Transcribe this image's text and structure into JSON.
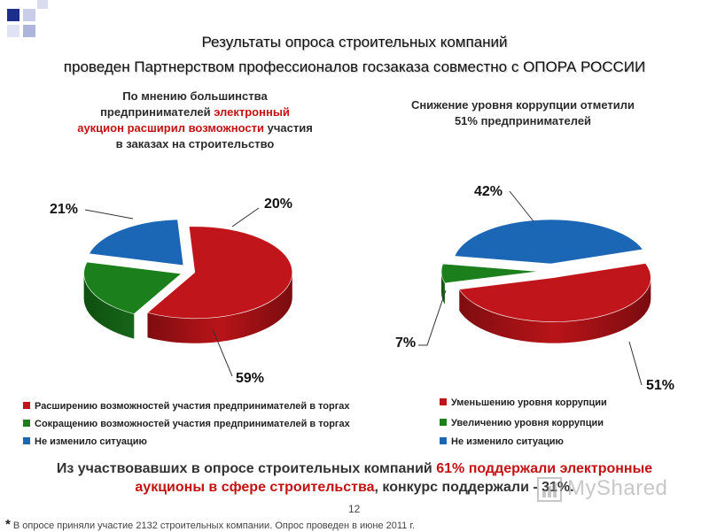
{
  "header": {
    "line1": "Результаты опроса строительных компаний",
    "line2": "проведен Партнерством профессионалов госзаказа совместно с ОПОРА РОССИИ"
  },
  "colors": {
    "red": "#c0161b",
    "green": "#1b7f1b",
    "blue": "#1c67b5",
    "accent_text": "#c41212"
  },
  "chart_data": [
    {
      "type": "pie",
      "title_parts": {
        "l1": "По мнению большинства",
        "l2a": "предпринимателей ",
        "l2b": "электронный",
        "l3a": "аукцион расширил возможности",
        "l3b": " участия",
        "l4": "в заказах на строительство"
      },
      "labels": [
        "Расширению возможностей участия предпринимателей в торгах",
        "Сокращению возможностей участия предпринимателей в торгах",
        "Не изменило ситуацию"
      ],
      "values": [
        59,
        21,
        20
      ],
      "value_labels": [
        "59%",
        "21%",
        "20%"
      ],
      "colors": [
        "#c0161b",
        "#1b7f1b",
        "#1c67b5"
      ],
      "legend_position": "bottom-left"
    },
    {
      "type": "pie",
      "title_parts": {
        "l1": "Снижение уровня коррупции отметили",
        "l2": "51% предпринимателей"
      },
      "labels": [
        "Уменьшению уровня коррупции",
        "Увеличению уровня коррупции",
        "Не изменило ситуацию"
      ],
      "values": [
        51,
        7,
        42
      ],
      "value_labels": [
        "51%",
        "7%",
        "42%"
      ],
      "colors": [
        "#c0161b",
        "#1b7f1b",
        "#1c67b5"
      ],
      "legend_position": "bottom-right"
    }
  ],
  "bottom": {
    "a": "Из участвовавших в опросе строительных компаний ",
    "b": "61% поддержали электронные",
    "c": "аукционы в сфере строительства",
    "d": ", конкурс поддержали - 31%."
  },
  "page_number": "12",
  "footnote": {
    "star": "*",
    "text": " В опросе приняли участие 2132 строительных компании. Опрос проведен в июне 2011 г."
  },
  "watermark": {
    "text": "MyShared",
    "icon": "bar-chart-icon"
  }
}
